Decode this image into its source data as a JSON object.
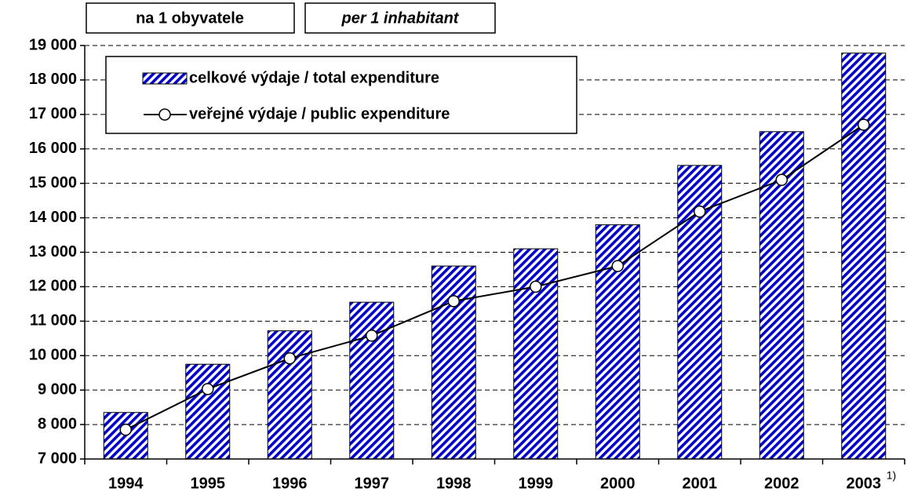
{
  "chart_data": {
    "type": "bar_line",
    "title": "na 1 obyvatele",
    "subtitle": "per 1 inhabitant",
    "categories": [
      "1994",
      "1995",
      "1996",
      "1997",
      "1998",
      "1999",
      "2000",
      "2001",
      "2002",
      "2003"
    ],
    "annotations": [
      {
        "text": "1)",
        "category": "2003"
      }
    ],
    "series": [
      {
        "name": "celkové výdaje / total expenditure",
        "type": "bar",
        "color": "#0000cc",
        "values": [
          8350,
          9750,
          10720,
          11550,
          12600,
          13100,
          13800,
          15520,
          16500,
          18780
        ]
      },
      {
        "name": "veřejné výdaje / public expenditure",
        "type": "line",
        "color": "#000000",
        "values": [
          7850,
          9030,
          9920,
          10580,
          11580,
          12000,
          12600,
          14180,
          15100,
          16700
        ]
      }
    ],
    "ylim": [
      7000,
      19000
    ],
    "yticks": [
      {
        "value": 7000,
        "label": "7 000"
      },
      {
        "value": 8000,
        "label": "8 000"
      },
      {
        "value": 9000,
        "label": "9 000"
      },
      {
        "value": 10000,
        "label": "10 000"
      },
      {
        "value": 11000,
        "label": "11 000"
      },
      {
        "value": 12000,
        "label": "12 000"
      },
      {
        "value": 13000,
        "label": "13 000"
      },
      {
        "value": 14000,
        "label": "14 000"
      },
      {
        "value": 15000,
        "label": "15 000"
      },
      {
        "value": 16000,
        "label": "16 000"
      },
      {
        "value": 17000,
        "label": "17 000"
      },
      {
        "value": 18000,
        "label": "18 000"
      },
      {
        "value": 19000,
        "label": "19 000"
      }
    ],
    "grid": true
  }
}
